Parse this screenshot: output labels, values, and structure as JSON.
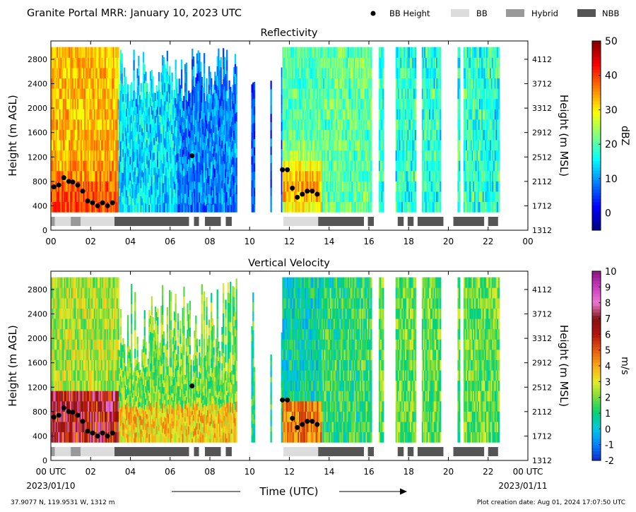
{
  "header": {
    "title": "Granite Portal MRR:  January 10, 2023 UTC",
    "legend": [
      {
        "label": "BB Height",
        "kind": "dot",
        "color": "#000000"
      },
      {
        "label": "BB",
        "kind": "swatch",
        "color": "#dcdcdc"
      },
      {
        "label": "Hybrid",
        "kind": "swatch",
        "color": "#999999"
      },
      {
        "label": "NBB",
        "kind": "swatch",
        "color": "#555555"
      }
    ]
  },
  "footer": {
    "location": "37.9077 N, 119.9531 W, 1312 m",
    "creation": "Plot creation date: Aug 01, 2024 17:07:50 UTC",
    "xlabel": "Time (UTC)",
    "start_date": "2023/01/10",
    "end_date": "2023/01/11"
  },
  "chart_data": [
    {
      "type": "heatmap",
      "title": "Reflectivity",
      "ylabel": "Height (m AGL)",
      "ylabel_right": "Height (m MSL)",
      "colorbar_label": "dBZ",
      "xlim": [
        0,
        24
      ],
      "ylim": [
        0,
        3100
      ],
      "xticks": [
        "00",
        "02",
        "04",
        "06",
        "08",
        "10",
        "12",
        "14",
        "16",
        "18",
        "20",
        "22",
        "00"
      ],
      "yticks": [
        0,
        400,
        800,
        1200,
        1600,
        2000,
        2400,
        2800
      ],
      "yticks_right": [
        1312,
        1712,
        2112,
        2512,
        2912,
        3312,
        3712,
        4112
      ],
      "colorbar": {
        "min": -5,
        "max": 50,
        "ticks": [
          0,
          10,
          20,
          30,
          40,
          50
        ],
        "colormap": "jet"
      },
      "bb_height": [
        [
          0.15,
          710
        ],
        [
          0.4,
          740
        ],
        [
          0.65,
          860
        ],
        [
          0.9,
          800
        ],
        [
          1.1,
          790
        ],
        [
          1.35,
          740
        ],
        [
          1.6,
          640
        ],
        [
          1.85,
          480
        ],
        [
          2.1,
          450
        ],
        [
          2.35,
          400
        ],
        [
          2.6,
          450
        ],
        [
          2.85,
          400
        ],
        [
          3.1,
          450
        ],
        [
          7.1,
          1220
        ],
        [
          11.65,
          990
        ],
        [
          11.9,
          990
        ],
        [
          12.15,
          690
        ],
        [
          12.4,
          540
        ],
        [
          12.65,
          590
        ],
        [
          12.9,
          640
        ],
        [
          13.15,
          640
        ],
        [
          13.4,
          590
        ]
      ]
    },
    {
      "type": "heatmap",
      "title": "Vertical Velocity",
      "ylabel": "Height (m AGL)",
      "ylabel_right": "Height (m MSL)",
      "colorbar_label": "m/s",
      "xlim": [
        0,
        24
      ],
      "ylim": [
        0,
        3100
      ],
      "xticks": [
        "00 UTC",
        "02",
        "04",
        "06",
        "08",
        "10",
        "12",
        "14",
        "16",
        "18",
        "20",
        "22",
        "00 UTC"
      ],
      "yticks": [
        0,
        400,
        800,
        1200,
        1600,
        2000,
        2400,
        2800
      ],
      "yticks_right": [
        1312,
        1712,
        2112,
        2512,
        2912,
        3312,
        3712,
        4112
      ],
      "colorbar": {
        "min": -2,
        "max": 10,
        "ticks": [
          -2,
          -1,
          0,
          1,
          2,
          3,
          4,
          5,
          6,
          7,
          8,
          9,
          10
        ],
        "colormap": "velocity"
      },
      "bb_height": [
        [
          0.15,
          710
        ],
        [
          0.4,
          740
        ],
        [
          0.65,
          860
        ],
        [
          0.9,
          800
        ],
        [
          1.1,
          790
        ],
        [
          1.35,
          740
        ],
        [
          1.6,
          640
        ],
        [
          1.85,
          480
        ],
        [
          2.1,
          450
        ],
        [
          2.35,
          400
        ],
        [
          2.6,
          450
        ],
        [
          2.85,
          400
        ],
        [
          3.1,
          450
        ],
        [
          7.1,
          1220
        ],
        [
          11.65,
          990
        ],
        [
          11.9,
          990
        ],
        [
          12.15,
          690
        ],
        [
          12.4,
          540
        ],
        [
          12.65,
          590
        ],
        [
          12.9,
          640
        ],
        [
          13.15,
          640
        ],
        [
          13.4,
          590
        ]
      ]
    }
  ],
  "bb_type_bar": [
    {
      "start": 0.0,
      "end": 0.2,
      "type": "Hybrid"
    },
    {
      "start": 0.2,
      "end": 1.0,
      "type": "BB"
    },
    {
      "start": 1.0,
      "end": 1.5,
      "type": "Hybrid"
    },
    {
      "start": 1.5,
      "end": 3.2,
      "type": "BB"
    },
    {
      "start": 3.2,
      "end": 6.95,
      "type": "NBB"
    },
    {
      "start": 7.2,
      "end": 7.45,
      "type": "NBB"
    },
    {
      "start": 7.75,
      "end": 8.55,
      "type": "NBB"
    },
    {
      "start": 8.8,
      "end": 9.1,
      "type": "NBB"
    },
    {
      "start": 11.7,
      "end": 13.45,
      "type": "BB"
    },
    {
      "start": 13.45,
      "end": 15.75,
      "type": "NBB"
    },
    {
      "start": 15.95,
      "end": 16.25,
      "type": "NBB"
    },
    {
      "start": 17.45,
      "end": 17.75,
      "type": "NBB"
    },
    {
      "start": 17.95,
      "end": 18.25,
      "type": "NBB"
    },
    {
      "start": 18.45,
      "end": 19.75,
      "type": "NBB"
    },
    {
      "start": 20.25,
      "end": 21.8,
      "type": "NBB"
    },
    {
      "start": 22.0,
      "end": 22.5,
      "type": "NBB"
    }
  ],
  "data_coverage": [
    [
      0,
      9.35
    ],
    [
      10.05,
      10.2
    ],
    [
      11.0,
      11.1
    ],
    [
      11.55,
      16.1
    ],
    [
      16.5,
      16.7
    ],
    [
      17.3,
      18.3
    ],
    [
      18.6,
      19.6
    ],
    [
      20.4,
      20.55
    ],
    [
      20.7,
      22.5
    ]
  ]
}
